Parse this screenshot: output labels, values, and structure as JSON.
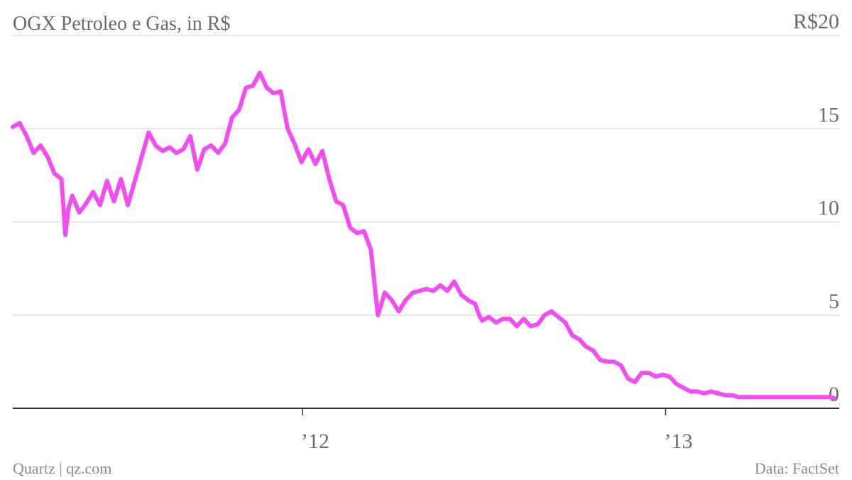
{
  "chart_data": {
    "type": "line",
    "title": "OGX Petroleo e Gas, in R$",
    "ylim": [
      0,
      20
    ],
    "y_ticks": [
      {
        "value": 20,
        "label": "R$20"
      },
      {
        "value": 15,
        "label": "15"
      },
      {
        "value": 10,
        "label": "10"
      },
      {
        "value": 5,
        "label": "5"
      },
      {
        "value": 0,
        "label": "0"
      }
    ],
    "xlim": [
      "2011-03-15",
      "2013-06-25"
    ],
    "x_ticks": [
      {
        "value": "2012-01-01",
        "label": "’12"
      },
      {
        "value": "2013-01-01",
        "label": "’13"
      }
    ],
    "grid": true,
    "legend": "none",
    "line_color": "#f14ef1",
    "series": [
      {
        "x": [
          "2011-03-15",
          "2011-03-22",
          "2011-03-29",
          "2011-04-05",
          "2011-04-12",
          "2011-04-19",
          "2011-04-26",
          "2011-05-03",
          "2011-05-07",
          "2011-05-10",
          "2011-05-14",
          "2011-05-21",
          "2011-05-28",
          "2011-06-04",
          "2011-06-11",
          "2011-06-18",
          "2011-06-25",
          "2011-07-02",
          "2011-07-09",
          "2011-07-16",
          "2011-07-23",
          "2011-07-30",
          "2011-08-06",
          "2011-08-13",
          "2011-08-20",
          "2011-08-27",
          "2011-09-03",
          "2011-09-10",
          "2011-09-17",
          "2011-09-24",
          "2011-10-01",
          "2011-10-08",
          "2011-10-15",
          "2011-10-22",
          "2011-10-29",
          "2011-11-05",
          "2011-11-12",
          "2011-11-19",
          "2011-11-26",
          "2011-12-03",
          "2011-12-10",
          "2011-12-17",
          "2011-12-24",
          "2011-12-31",
          "2012-01-07",
          "2012-01-14",
          "2012-01-21",
          "2012-01-28",
          "2012-02-04",
          "2012-02-11",
          "2012-02-18",
          "2012-02-25",
          "2012-03-03",
          "2012-03-10",
          "2012-03-17",
          "2012-03-24",
          "2012-03-31",
          "2012-04-07",
          "2012-04-14",
          "2012-04-21",
          "2012-04-28",
          "2012-05-05",
          "2012-05-12",
          "2012-05-19",
          "2012-05-26",
          "2012-06-02",
          "2012-06-09",
          "2012-06-16",
          "2012-06-23",
          "2012-06-27",
          "2012-06-30",
          "2012-07-07",
          "2012-07-14",
          "2012-07-21",
          "2012-07-28",
          "2012-08-04",
          "2012-08-11",
          "2012-08-18",
          "2012-08-25",
          "2012-09-01",
          "2012-09-08",
          "2012-09-15",
          "2012-09-22",
          "2012-09-29",
          "2012-10-06",
          "2012-10-13",
          "2012-10-20",
          "2012-10-27",
          "2012-11-03",
          "2012-11-10",
          "2012-11-17",
          "2012-11-24",
          "2012-12-01",
          "2012-12-08",
          "2012-12-15",
          "2012-12-22",
          "2012-12-29",
          "2013-01-05",
          "2013-01-12",
          "2013-01-19",
          "2013-01-26",
          "2013-02-02",
          "2013-02-09",
          "2013-02-16",
          "2013-02-23",
          "2013-03-02",
          "2013-03-09",
          "2013-03-16",
          "2013-03-23",
          "2013-03-30",
          "2013-04-06",
          "2013-04-13",
          "2013-04-20",
          "2013-04-27",
          "2013-05-04",
          "2013-05-11",
          "2013-05-18",
          "2013-05-25",
          "2013-06-01",
          "2013-06-08",
          "2013-06-15",
          "2013-06-20"
        ],
        "values": [
          15.1,
          15.3,
          14.6,
          13.7,
          14.1,
          13.5,
          12.6,
          12.3,
          9.3,
          10.7,
          11.4,
          10.5,
          11.0,
          11.6,
          10.9,
          12.2,
          11.1,
          12.3,
          10.9,
          12.2,
          13.5,
          14.8,
          14.1,
          13.8,
          14.0,
          13.7,
          13.9,
          14.6,
          12.8,
          13.9,
          14.1,
          13.7,
          14.2,
          15.6,
          16.0,
          17.2,
          17.3,
          18.0,
          17.2,
          16.9,
          17.0,
          15.0,
          14.2,
          13.2,
          13.9,
          13.1,
          13.8,
          12.3,
          11.1,
          10.9,
          9.7,
          9.4,
          9.5,
          8.5,
          5.0,
          6.2,
          5.8,
          5.2,
          5.8,
          6.2,
          6.3,
          6.4,
          6.3,
          6.6,
          6.3,
          6.8,
          6.1,
          5.8,
          5.6,
          5.0,
          4.7,
          4.9,
          4.6,
          4.8,
          4.8,
          4.4,
          4.8,
          4.4,
          4.5,
          5.0,
          5.2,
          4.9,
          4.6,
          3.9,
          3.7,
          3.3,
          3.1,
          2.6,
          2.5,
          2.5,
          2.3,
          1.6,
          1.4,
          1.9,
          1.9,
          1.7,
          1.8,
          1.7,
          1.3,
          1.1,
          0.9,
          0.9,
          0.8,
          0.9,
          0.8,
          0.7,
          0.7,
          0.6,
          0.6,
          0.6,
          0.6,
          0.6,
          0.6,
          0.6,
          0.6,
          0.6,
          0.6,
          0.6,
          0.6,
          0.6,
          0.6,
          0.55
        ]
      }
    ]
  },
  "footer": {
    "source_left": "Quartz | qz.com",
    "source_right": "Data: FactSet"
  }
}
